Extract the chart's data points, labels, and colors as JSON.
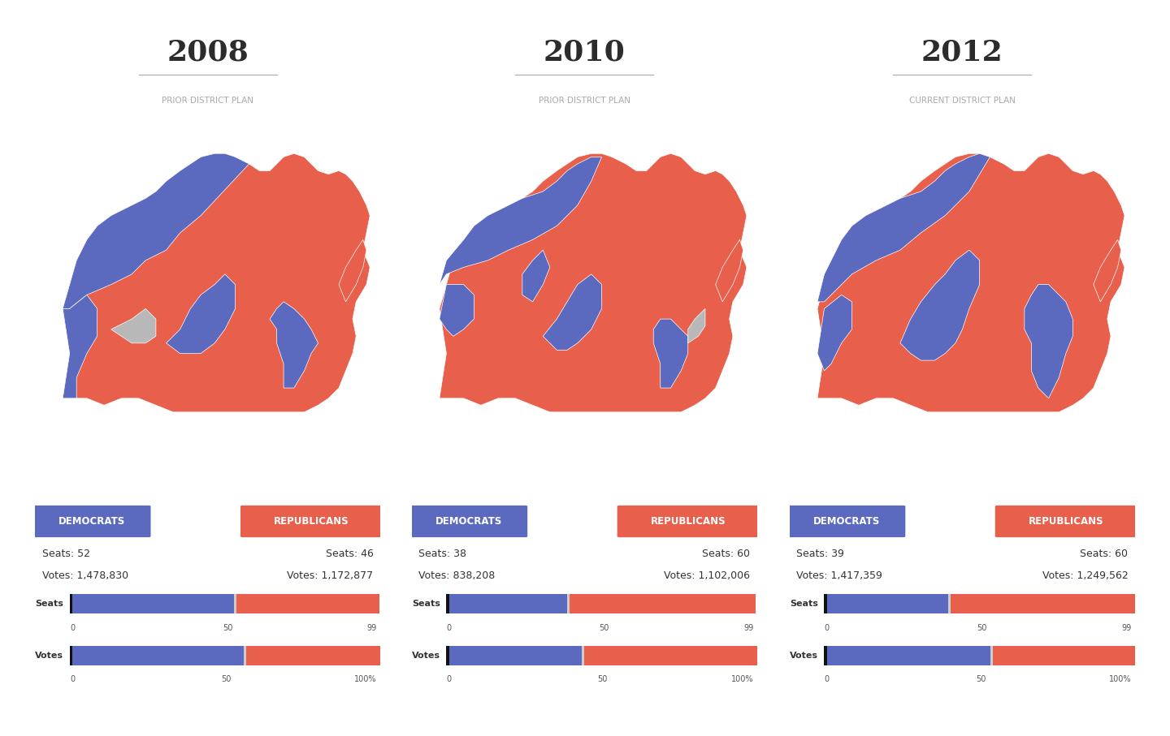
{
  "years": [
    "2008",
    "2010",
    "2012"
  ],
  "subtitles": [
    "PRIOR DISTRICT PLAN",
    "PRIOR DISTRICT PLAN",
    "CURRENT DISTRICT PLAN"
  ],
  "dem_seats": [
    52,
    38,
    39
  ],
  "rep_seats": [
    46,
    60,
    60
  ],
  "dem_votes_str": [
    "1,478,830",
    "838,208",
    "1,417,359"
  ],
  "rep_votes_str": [
    "1,172,877",
    "1,102,006",
    "1,249,562"
  ],
  "total_seats": 99,
  "dem_color": "#5b6abf",
  "rep_color": "#e8604c",
  "gray_color": "#b8b8b8",
  "bg_color": "#ffffff",
  "dem_vote_pct": [
    0.5576,
    0.432,
    0.5315
  ],
  "rep_vote_pct": [
    0.4424,
    0.568,
    0.4685
  ],
  "dem_seat_pct": [
    0.5253,
    0.3838,
    0.3939
  ],
  "rep_seat_pct": [
    0.4646,
    0.606,
    0.606
  ]
}
